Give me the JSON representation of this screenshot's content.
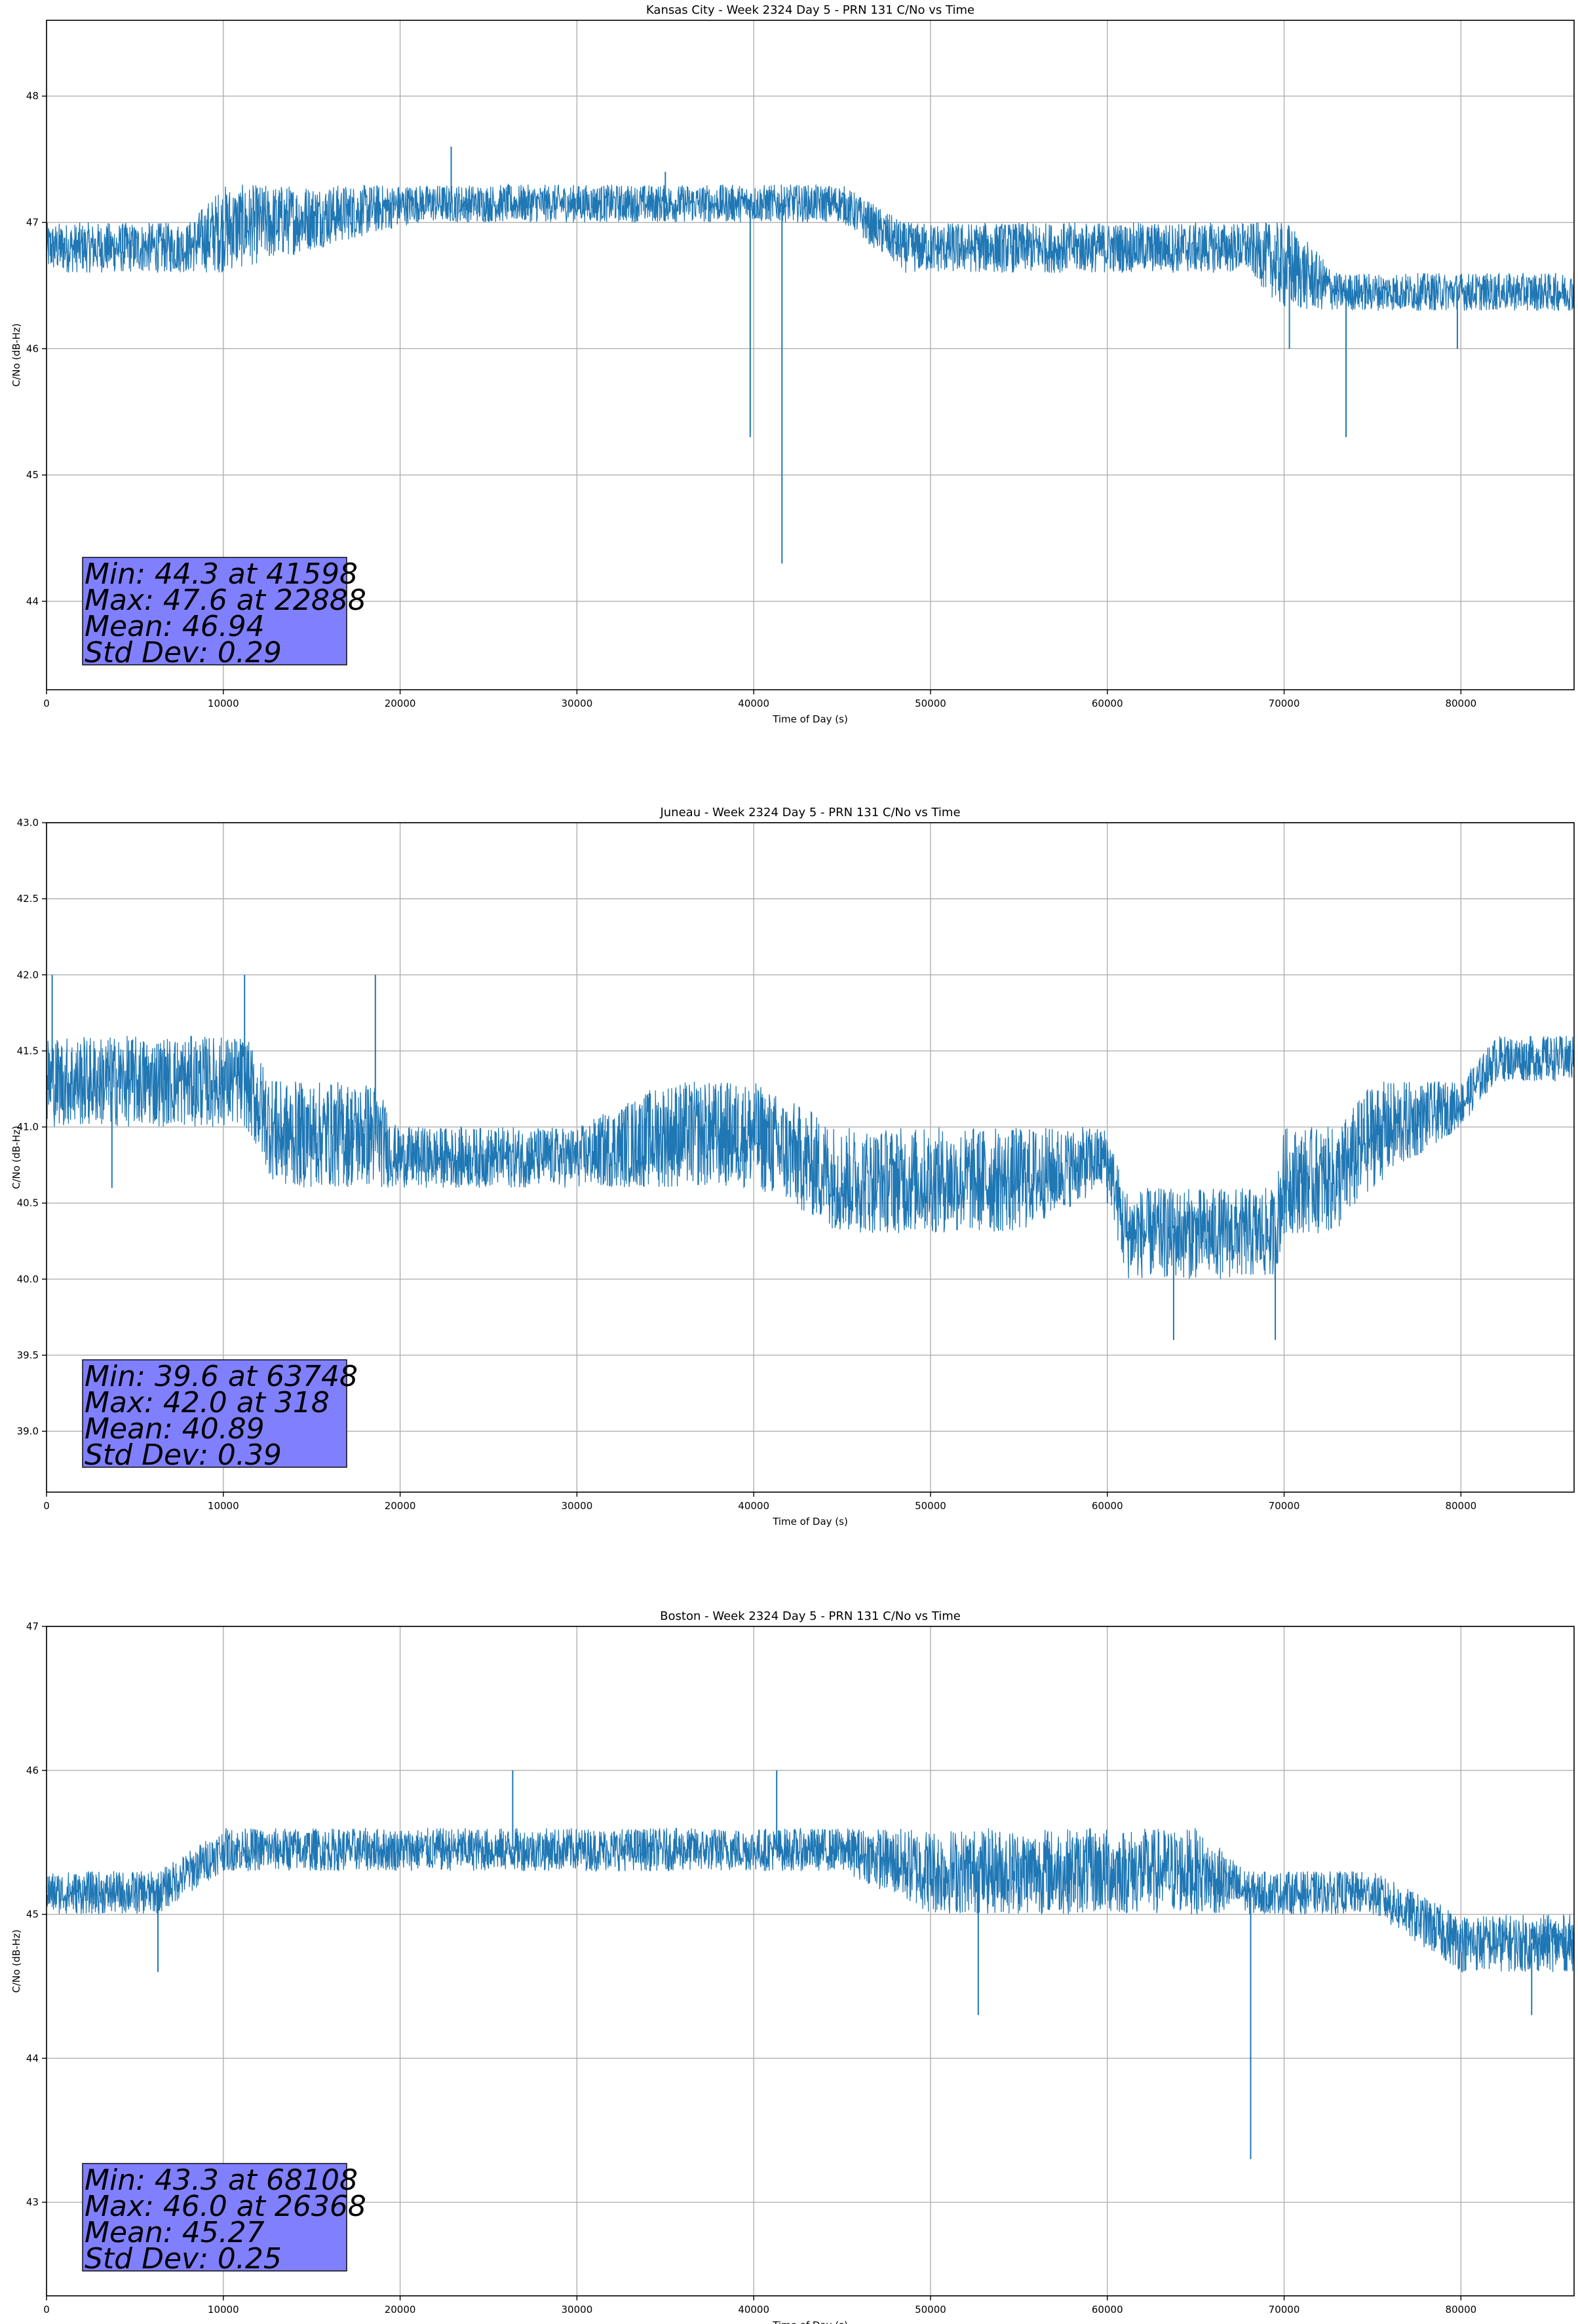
{
  "chart_data": [
    {
      "type": "line",
      "title": "Kansas City - Week 2324 Day 5 - PRN 131 C/No vs Time",
      "xlabel": "Time of Day (s)",
      "ylabel": "C/No (dB-Hz)",
      "xlim": [
        0,
        86400
      ],
      "ylim": [
        43.3,
        48.6
      ],
      "xticks": [
        0,
        10000,
        20000,
        30000,
        40000,
        50000,
        60000,
        70000,
        80000
      ],
      "yticks": [
        44,
        45,
        46,
        47,
        48
      ],
      "ytick_labels": [
        "44",
        "45",
        "46",
        "47",
        "48"
      ],
      "grid": true,
      "series_color": "#1f77b4",
      "stats_box_color": "#8080ff",
      "stats": [
        "Min: 44.3 at 41598",
        "Max: 47.6 at 22888",
        "Mean: 46.94",
        "Std Dev: 0.29"
      ],
      "series": [
        {
          "x": [
            0,
            8000,
            10000,
            21000,
            22888,
            30000,
            35000,
            39700,
            39800,
            41500,
            41598,
            41700,
            45000,
            48500,
            55000,
            60000,
            65000,
            68000,
            70000,
            70300,
            73000,
            73500,
            76000,
            79800,
            86400
          ],
          "values": [
            46.9,
            46.9,
            47.0,
            47.0,
            47.6,
            47.2,
            47.4,
            47.1,
            45.3,
            47.1,
            44.3,
            47.1,
            47.2,
            46.8,
            46.9,
            46.8,
            46.7,
            46.7,
            46.6,
            46.0,
            46.5,
            45.3,
            46.5,
            46.0,
            46.6
          ],
          "band_low": [
            46.6,
            46.6,
            46.6,
            47.0,
            47.0,
            47.0,
            47.0,
            47.0,
            47.0,
            47.0,
            47.0,
            47.0,
            47.0,
            46.6,
            46.6,
            46.6,
            46.6,
            46.6,
            46.3,
            46.3,
            46.3,
            46.3,
            46.3,
            46.3,
            46.3
          ],
          "band_high": [
            47.0,
            47.0,
            47.3,
            47.3,
            47.3,
            47.3,
            47.3,
            47.3,
            47.3,
            47.3,
            47.3,
            47.3,
            47.3,
            47.0,
            47.0,
            47.0,
            47.0,
            47.0,
            47.0,
            47.0,
            46.6,
            46.6,
            46.6,
            46.6,
            46.6
          ]
        }
      ]
    },
    {
      "type": "line",
      "title": "Juneau - Week 2324 Day 5 - PRN 131 C/No vs Time",
      "xlabel": "Time of Day (s)",
      "ylabel": "C/No (dB-Hz)",
      "xlim": [
        0,
        86400
      ],
      "ylim": [
        38.6,
        43.0
      ],
      "xticks": [
        0,
        10000,
        20000,
        30000,
        40000,
        50000,
        60000,
        70000,
        80000
      ],
      "yticks": [
        39.0,
        39.5,
        40.0,
        40.5,
        41.0,
        41.5,
        42.0,
        42.5,
        43.0
      ],
      "ytick_labels": [
        "39.0",
        "39.5",
        "40.0",
        "40.5",
        "41.0",
        "41.5",
        "42.0",
        "42.5",
        "43.0"
      ],
      "grid": true,
      "series_color": "#1f77b4",
      "stats_box_color": "#8080ff",
      "stats": [
        "Min: 39.6 at 63748",
        "Max: 42.0 at 318",
        "Mean: 40.89",
        "Std Dev: 0.39"
      ],
      "series": [
        {
          "x": [
            0,
            318,
            3700,
            10000,
            11200,
            13000,
            18600,
            19800,
            25000,
            30000,
            35000,
            40000,
            45000,
            50000,
            55000,
            60000,
            61000,
            63748,
            65000,
            69500,
            70000,
            73000,
            75000,
            80000,
            82000,
            86400
          ],
          "values": [
            41.3,
            42.0,
            40.6,
            41.4,
            42.0,
            41.3,
            42.0,
            40.8,
            40.8,
            40.9,
            41.0,
            41.1,
            40.7,
            40.6,
            40.5,
            40.5,
            40.3,
            39.6,
            40.4,
            39.6,
            40.3,
            40.6,
            40.9,
            41.1,
            41.4,
            41.5
          ],
          "band_low": [
            41.0,
            41.0,
            41.0,
            41.0,
            41.0,
            40.6,
            40.6,
            40.6,
            40.6,
            40.6,
            40.6,
            40.6,
            40.3,
            40.3,
            40.3,
            40.6,
            40.0,
            40.0,
            40.0,
            40.0,
            40.3,
            40.3,
            40.6,
            41.0,
            41.3,
            41.3
          ],
          "band_high": [
            41.6,
            41.6,
            41.6,
            41.6,
            41.6,
            41.3,
            41.3,
            41.0,
            41.0,
            41.0,
            41.3,
            41.3,
            41.0,
            41.0,
            41.0,
            41.0,
            40.6,
            40.6,
            40.6,
            40.6,
            41.0,
            41.0,
            41.3,
            41.3,
            41.6,
            41.6
          ]
        }
      ]
    },
    {
      "type": "line",
      "title": "Boston - Week 2324 Day 5 - PRN 131 C/No vs Time",
      "xlabel": "Time of Day (s)",
      "ylabel": "C/No (dB-Hz)",
      "xlim": [
        0,
        86400
      ],
      "ylim": [
        42.35,
        47.0
      ],
      "xticks": [
        0,
        10000,
        20000,
        30000,
        40000,
        50000,
        60000,
        70000,
        80000
      ],
      "yticks": [
        43,
        44,
        45,
        46,
        47
      ],
      "ytick_labels": [
        "43",
        "44",
        "45",
        "46",
        "47"
      ],
      "grid": true,
      "series_color": "#1f77b4",
      "stats_box_color": "#8080ff",
      "stats": [
        "Min: 43.3 at 68108",
        "Max: 46.0 at 26368",
        "Mean: 45.27",
        "Std Dev: 0.25"
      ],
      "series": [
        {
          "x": [
            0,
            6300,
            10000,
            20000,
            26368,
            30000,
            40000,
            41300,
            45000,
            50000,
            52700,
            55000,
            60000,
            65000,
            68000,
            68108,
            68300,
            75000,
            80000,
            84000,
            86400
          ],
          "values": [
            45.2,
            44.6,
            45.4,
            45.5,
            46.0,
            45.5,
            45.5,
            46.0,
            45.5,
            45.4,
            44.3,
            45.3,
            45.3,
            45.2,
            45.2,
            43.3,
            45.2,
            45.1,
            44.9,
            44.3,
            44.8
          ],
          "band_low": [
            45.0,
            45.0,
            45.3,
            45.3,
            45.3,
            45.3,
            45.3,
            45.3,
            45.3,
            45.0,
            45.0,
            45.0,
            45.0,
            45.0,
            45.0,
            45.0,
            45.0,
            45.0,
            44.6,
            44.6,
            44.6
          ],
          "band_high": [
            45.3,
            45.3,
            45.6,
            45.6,
            45.6,
            45.6,
            45.6,
            45.6,
            45.6,
            45.6,
            45.6,
            45.6,
            45.6,
            45.6,
            45.3,
            45.3,
            45.3,
            45.3,
            45.0,
            45.0,
            45.0
          ]
        }
      ]
    }
  ]
}
